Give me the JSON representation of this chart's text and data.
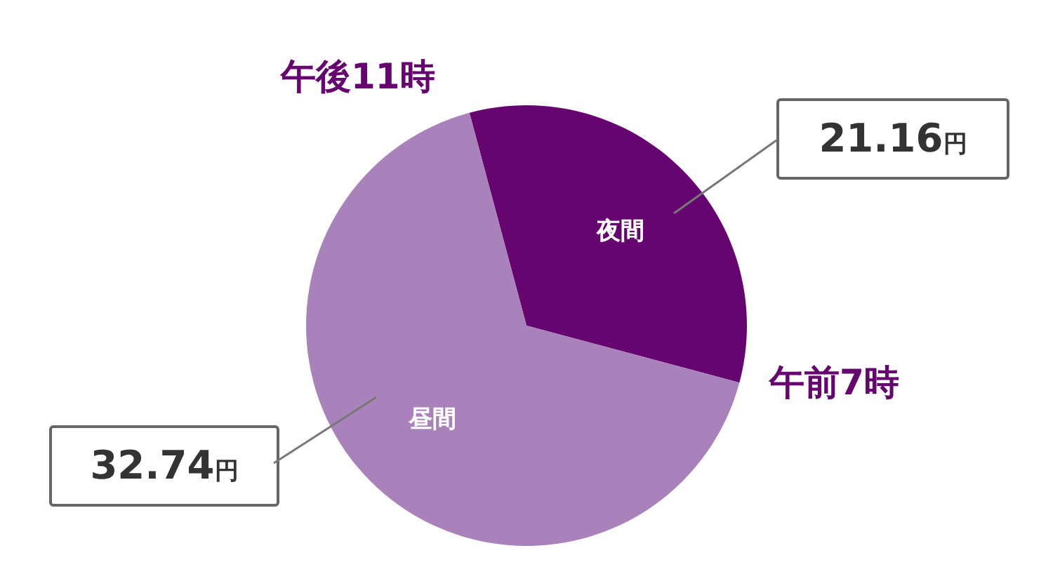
{
  "chart_data": {
    "type": "pie",
    "categories": [
      "夜間",
      "昼間"
    ],
    "values": [
      33.33,
      66.67
    ],
    "colors": [
      "#66056f",
      "#aa82bb"
    ],
    "annotations": [
      "午後11時",
      "午前7時",
      "21.16円",
      "32.74円"
    ]
  }
}
